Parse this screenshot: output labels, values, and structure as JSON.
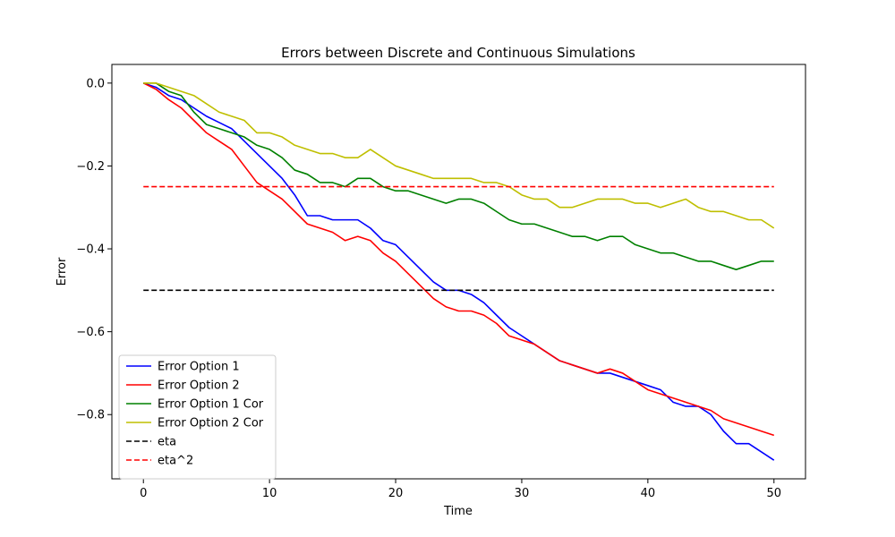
{
  "chart_data": {
    "type": "line",
    "title": "Errors between Discrete and Continuous Simulations",
    "xlabel": "Time",
    "ylabel": "Error",
    "xlim": [
      -2.5,
      52.5
    ],
    "ylim": [
      -0.955,
      0.045
    ],
    "x_ticks": [
      0,
      10,
      20,
      30,
      40,
      50
    ],
    "x_tick_labels": [
      "0",
      "10",
      "20",
      "30",
      "40",
      "50"
    ],
    "y_ticks": [
      0.0,
      -0.2,
      -0.4,
      -0.6,
      -0.8
    ],
    "y_tick_labels": [
      "0.0",
      "−0.2",
      "−0.4",
      "−0.6",
      "−0.8"
    ],
    "grid": false,
    "legend_position": "lower-left",
    "series": [
      {
        "name": "Error Option 1",
        "color": "#0000ff",
        "style": "solid",
        "x": [
          0,
          1,
          2,
          3,
          4,
          5,
          6,
          7,
          8,
          9,
          10,
          11,
          12,
          13,
          14,
          15,
          16,
          17,
          18,
          19,
          20,
          21,
          22,
          23,
          24,
          25,
          26,
          27,
          28,
          29,
          30,
          31,
          32,
          33,
          34,
          35,
          36,
          37,
          38,
          39,
          40,
          41,
          42,
          43,
          44,
          45,
          46,
          47,
          48,
          49,
          50
        ],
        "y": [
          0.0,
          -0.01,
          -0.03,
          -0.04,
          -0.06,
          -0.08,
          -0.095,
          -0.11,
          -0.14,
          -0.17,
          -0.2,
          -0.23,
          -0.27,
          -0.32,
          -0.32,
          -0.33,
          -0.33,
          -0.33,
          -0.35,
          -0.38,
          -0.39,
          -0.42,
          -0.45,
          -0.48,
          -0.5,
          -0.5,
          -0.51,
          -0.53,
          -0.56,
          -0.59,
          -0.61,
          -0.63,
          -0.65,
          -0.67,
          -0.68,
          -0.69,
          -0.7,
          -0.7,
          -0.71,
          -0.72,
          -0.73,
          -0.74,
          -0.77,
          -0.78,
          -0.78,
          -0.8,
          -0.84,
          -0.87,
          -0.87,
          -0.89,
          -0.91
        ]
      },
      {
        "name": "Error Option 2",
        "color": "#ff0000",
        "style": "solid",
        "x": [
          0,
          1,
          2,
          3,
          4,
          5,
          6,
          7,
          8,
          9,
          10,
          11,
          12,
          13,
          14,
          15,
          16,
          17,
          18,
          19,
          20,
          21,
          22,
          23,
          24,
          25,
          26,
          27,
          28,
          29,
          30,
          31,
          32,
          33,
          34,
          35,
          36,
          37,
          38,
          39,
          40,
          41,
          42,
          43,
          44,
          45,
          46,
          47,
          48,
          49,
          50
        ],
        "y": [
          0.0,
          -0.015,
          -0.04,
          -0.06,
          -0.09,
          -0.12,
          -0.14,
          -0.16,
          -0.2,
          -0.24,
          -0.26,
          -0.28,
          -0.31,
          -0.34,
          -0.35,
          -0.36,
          -0.38,
          -0.37,
          -0.38,
          -0.41,
          -0.43,
          -0.46,
          -0.49,
          -0.52,
          -0.54,
          -0.55,
          -0.55,
          -0.56,
          -0.58,
          -0.61,
          -0.62,
          -0.63,
          -0.65,
          -0.67,
          -0.68,
          -0.69,
          -0.7,
          -0.69,
          -0.7,
          -0.72,
          -0.74,
          -0.75,
          -0.76,
          -0.77,
          -0.78,
          -0.79,
          -0.81,
          -0.82,
          -0.83,
          -0.84,
          -0.85
        ]
      },
      {
        "name": "Error Option 1 Cor",
        "color": "#008000",
        "style": "solid",
        "x": [
          0,
          1,
          2,
          3,
          4,
          5,
          6,
          7,
          8,
          9,
          10,
          11,
          12,
          13,
          14,
          15,
          16,
          17,
          18,
          19,
          20,
          21,
          22,
          23,
          24,
          25,
          26,
          27,
          28,
          29,
          30,
          31,
          32,
          33,
          34,
          35,
          36,
          37,
          38,
          39,
          40,
          41,
          42,
          43,
          44,
          45,
          46,
          47,
          48,
          49,
          50
        ],
        "y": [
          0.0,
          0.0,
          -0.02,
          -0.03,
          -0.07,
          -0.1,
          -0.11,
          -0.12,
          -0.13,
          -0.15,
          -0.16,
          -0.18,
          -0.21,
          -0.22,
          -0.24,
          -0.24,
          -0.25,
          -0.23,
          -0.23,
          -0.25,
          -0.26,
          -0.26,
          -0.27,
          -0.28,
          -0.29,
          -0.28,
          -0.28,
          -0.29,
          -0.31,
          -0.33,
          -0.34,
          -0.34,
          -0.35,
          -0.36,
          -0.37,
          -0.37,
          -0.38,
          -0.37,
          -0.37,
          -0.39,
          -0.4,
          -0.41,
          -0.41,
          -0.42,
          -0.43,
          -0.43,
          -0.44,
          -0.45,
          -0.44,
          -0.43,
          -0.43
        ]
      },
      {
        "name": "Error Option 2 Cor",
        "color": "#bfbf00",
        "style": "solid",
        "x": [
          0,
          1,
          2,
          3,
          4,
          5,
          6,
          7,
          8,
          9,
          10,
          11,
          12,
          13,
          14,
          15,
          16,
          17,
          18,
          19,
          20,
          21,
          22,
          23,
          24,
          25,
          26,
          27,
          28,
          29,
          30,
          31,
          32,
          33,
          34,
          35,
          36,
          37,
          38,
          39,
          40,
          41,
          42,
          43,
          44,
          45,
          46,
          47,
          48,
          49,
          50
        ],
        "y": [
          0.0,
          0.0,
          -0.01,
          -0.02,
          -0.03,
          -0.05,
          -0.07,
          -0.08,
          -0.09,
          -0.12,
          -0.12,
          -0.13,
          -0.15,
          -0.16,
          -0.17,
          -0.17,
          -0.18,
          -0.18,
          -0.16,
          -0.18,
          -0.2,
          -0.21,
          -0.22,
          -0.23,
          -0.23,
          -0.23,
          -0.23,
          -0.24,
          -0.24,
          -0.25,
          -0.27,
          -0.28,
          -0.28,
          -0.3,
          -0.3,
          -0.29,
          -0.28,
          -0.28,
          -0.28,
          -0.29,
          -0.29,
          -0.3,
          -0.29,
          -0.28,
          -0.3,
          -0.31,
          -0.31,
          -0.32,
          -0.33,
          -0.33,
          -0.35
        ]
      },
      {
        "name": "eta",
        "color": "#000000",
        "style": "dashed",
        "x": [
          0,
          50
        ],
        "y": [
          -0.5,
          -0.5
        ]
      },
      {
        "name": "eta^2",
        "color": "#ff0000",
        "style": "dashed",
        "x": [
          0,
          50
        ],
        "y": [
          -0.25,
          -0.25
        ]
      }
    ]
  }
}
